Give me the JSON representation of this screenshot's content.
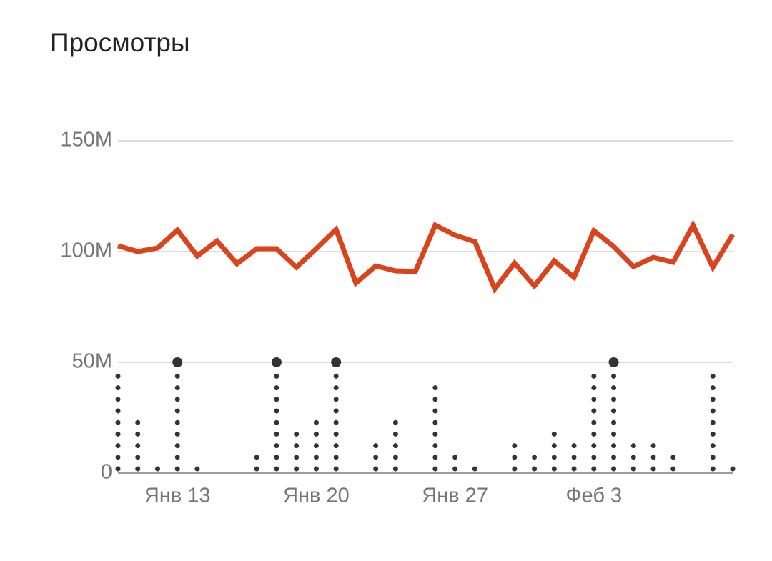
{
  "chart_data": {
    "type": "line",
    "title": "Просмотры",
    "categories": [
      null,
      null,
      null,
      "Янв 13",
      null,
      null,
      null,
      null,
      null,
      null,
      "Янв 20",
      null,
      null,
      null,
      null,
      null,
      null,
      "Янв 27",
      null,
      null,
      null,
      null,
      null,
      null,
      "Феб 3",
      null,
      null,
      null,
      null,
      null,
      null,
      null
    ],
    "series": [
      {
        "type": "line",
        "color": "#d9441c",
        "values": [
          102.6,
          100,
          101.6,
          109.7,
          98,
          104.8,
          94.5,
          101.3,
          101.3,
          92.9,
          101.3,
          110,
          85.8,
          93.5,
          91.3,
          91,
          111.9,
          107.4,
          104.5,
          83.2,
          94.8,
          84.5,
          95.8,
          88.4,
          109.4,
          102.3,
          93.2,
          97.4,
          95.2,
          111.9,
          92.9,
          107.7
        ]
      },
      {
        "type": "dots",
        "color": "#333333",
        "values": [
          45,
          23,
          2,
          50,
          2,
          0,
          0,
          8,
          50,
          18,
          23,
          50,
          0,
          13,
          23,
          0,
          39,
          8,
          2,
          0,
          13,
          8,
          18,
          13,
          45,
          50,
          13,
          13,
          8,
          0,
          45,
          2
        ]
      }
    ],
    "ylim": [
      0,
      150
    ],
    "yticks": [
      0,
      {
        "value": 50,
        "label": "50M"
      },
      {
        "value": 100,
        "label": "100M"
      },
      {
        "value": 150,
        "label": "150M"
      }
    ],
    "grid": true
  }
}
